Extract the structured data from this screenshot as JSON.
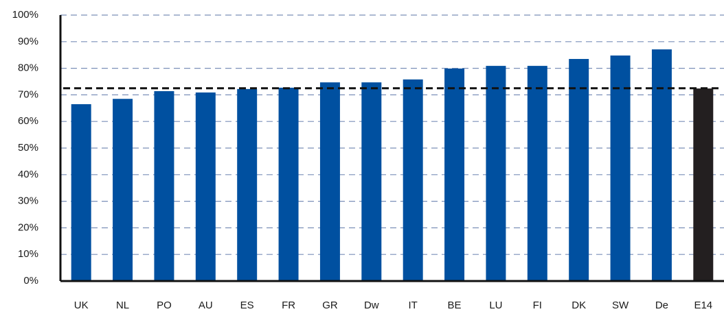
{
  "chart_data": {
    "type": "bar",
    "categories": [
      "UK",
      "NL",
      "PO",
      "AU",
      "ES",
      "FR",
      "GR",
      "Dw",
      "IT",
      "BE",
      "LU",
      "FI",
      "DK",
      "SW",
      "De",
      "E14"
    ],
    "values": [
      66.5,
      68.5,
      71.4,
      70.9,
      72.2,
      72.7,
      74.7,
      74.7,
      75.8,
      79.9,
      80.9,
      80.9,
      83.5,
      84.8,
      87.1,
      72.4
    ],
    "colors": [
      "#0050a0",
      "#0050a0",
      "#0050a0",
      "#0050a0",
      "#0050a0",
      "#0050a0",
      "#0050a0",
      "#0050a0",
      "#0050a0",
      "#0050a0",
      "#0050a0",
      "#0050a0",
      "#0050a0",
      "#0050a0",
      "#0050a0",
      "#231f20"
    ],
    "reference_line": 72.5,
    "ylim": [
      0,
      100
    ],
    "yticks": [
      {
        "value": 0,
        "label": "0%"
      },
      {
        "value": 10,
        "label": "10%"
      },
      {
        "value": 20,
        "label": "20%"
      },
      {
        "value": 30,
        "label": "30%"
      },
      {
        "value": 40,
        "label": "40%"
      },
      {
        "value": 50,
        "label": "50%"
      },
      {
        "value": 60,
        "label": "60%"
      },
      {
        "value": 70,
        "label": "70%"
      },
      {
        "value": 80,
        "label": "80%"
      },
      {
        "value": 90,
        "label": "90%"
      },
      {
        "value": 100,
        "label": "100%"
      }
    ],
    "grid": true
  }
}
